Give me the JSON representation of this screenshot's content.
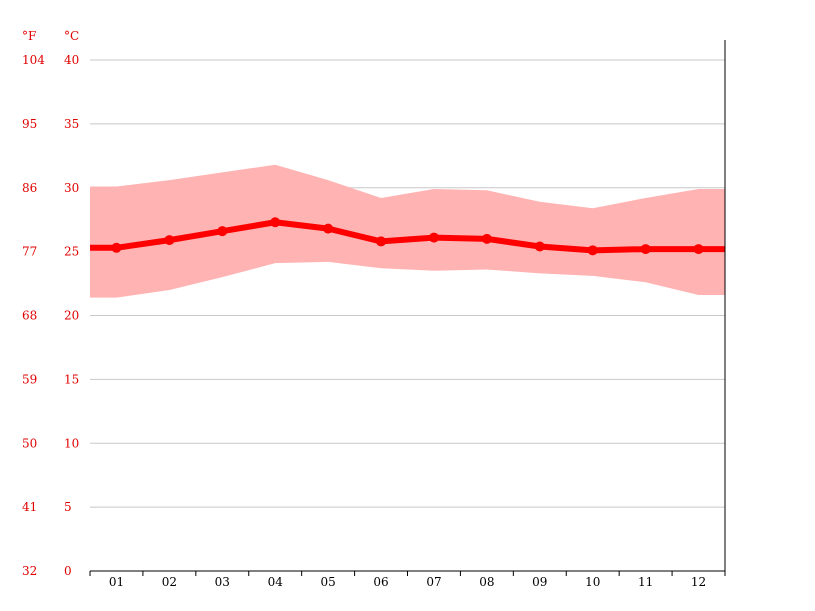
{
  "chart_data": {
    "type": "line",
    "categories": [
      "01",
      "02",
      "03",
      "04",
      "05",
      "06",
      "07",
      "08",
      "09",
      "10",
      "11",
      "12"
    ],
    "series": [
      {
        "values": [
          25.3,
          25.9,
          26.6,
          27.3,
          26.8,
          25.8,
          26.1,
          26.0,
          25.4,
          25.1,
          25.2,
          25.2
        ]
      }
    ],
    "range_band": {
      "upper": [
        30.1,
        30.6,
        31.2,
        31.8,
        30.6,
        29.2,
        29.9,
        29.8,
        28.9,
        28.4,
        29.2,
        29.9
      ],
      "lower": [
        21.4,
        22.0,
        23.0,
        24.1,
        24.2,
        23.7,
        23.5,
        23.6,
        23.3,
        23.1,
        22.6,
        21.6
      ]
    },
    "y_unit_left": "°F",
    "y_unit_right": "°C",
    "yticks_f": [
      "104",
      "95",
      "86",
      "77",
      "68",
      "59",
      "50",
      "41",
      "32"
    ],
    "yticks_c": [
      "40",
      "35",
      "30",
      "25",
      "20",
      "15",
      "10",
      "5",
      "0"
    ],
    "ylim": [
      0,
      40
    ],
    "grid": true,
    "colors": {
      "line": "#ff0000",
      "band": "#ffb3b3",
      "grid": "#c8c8c8",
      "tick_text": "#e00000",
      "axis": "#000000"
    }
  }
}
